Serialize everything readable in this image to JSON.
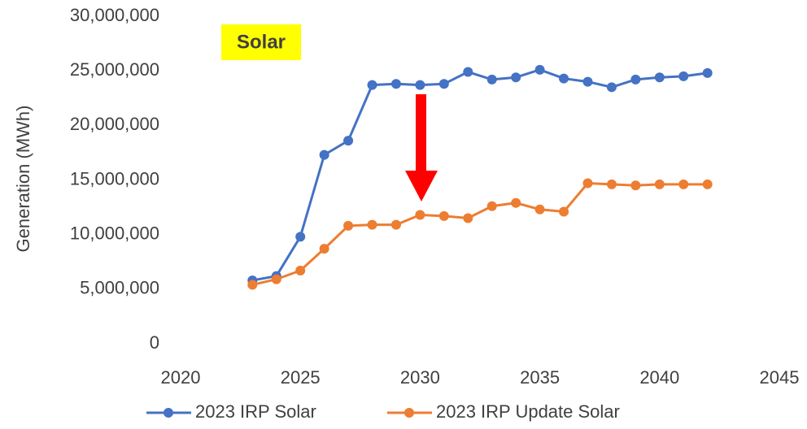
{
  "chart_data": {
    "type": "line",
    "y_label": "Generation (MWh)",
    "annotation": "Solar",
    "x": [
      2023,
      2024,
      2025,
      2026,
      2027,
      2028,
      2029,
      2030,
      2031,
      2032,
      2033,
      2034,
      2035,
      2036,
      2037,
      2038,
      2039,
      2040,
      2041,
      2042
    ],
    "series": [
      {
        "name": "2023 IRP Solar",
        "color": "#4472c4",
        "values": [
          5800000,
          6200000,
          9800000,
          17300000,
          18600000,
          23700000,
          23800000,
          23700000,
          23800000,
          24900000,
          24200000,
          24400000,
          25100000,
          24300000,
          24000000,
          23500000,
          24200000,
          24400000,
          24500000,
          24800000
        ]
      },
      {
        "name": "2023 IRP Update Solar",
        "color": "#ed7d31",
        "values": [
          5400000,
          5900000,
          6700000,
          8700000,
          10800000,
          10900000,
          10900000,
          11800000,
          11700000,
          11500000,
          12600000,
          12900000,
          12300000,
          12100000,
          14700000,
          14600000,
          14500000,
          14600000,
          14600000,
          14600000
        ]
      }
    ],
    "xlim": [
      2020,
      2045
    ],
    "xticks": [
      2020,
      2025,
      2030,
      2035,
      2040,
      2045
    ],
    "ylim": [
      0,
      30000000
    ],
    "yticks": [
      0,
      {
        "value": 5000000,
        "label": "5,000,000"
      },
      {
        "value": 10000000,
        "label": "10,000,000"
      },
      {
        "value": 15000000,
        "label": "15,000,000"
      },
      {
        "value": 20000000,
        "label": "20,000,000"
      },
      {
        "value": 25000000,
        "label": "25,000,000"
      },
      {
        "value": 30000000,
        "label": "30,000,000"
      }
    ],
    "grid": false,
    "legend": "bottom"
  }
}
